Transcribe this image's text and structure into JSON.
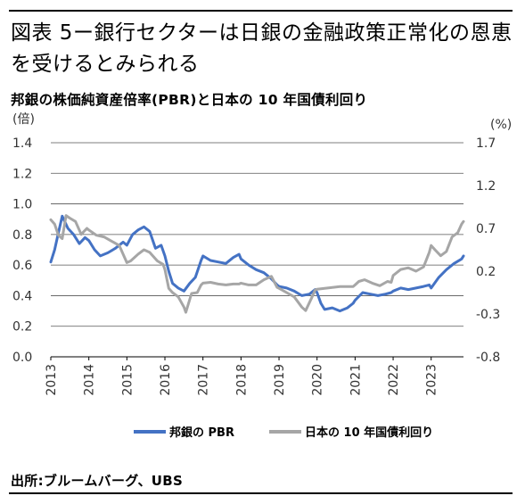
{
  "header": {
    "title": "図表 5ー銀行セクターは日銀の金融政策正常化の恩恵を受けるとみられる",
    "subtitle": "邦銀の株価純資産倍率(PBR)と日本の 10 年国債利回り"
  },
  "footer": {
    "source": "出所:ブルームバーグ、UBS"
  },
  "colors": {
    "pbr": "#4472C4",
    "jgb": "#A6A6A6",
    "negative_label": "#E04040",
    "grid": "#000000"
  },
  "chart_data": {
    "type": "line",
    "title": "邦銀の株価純資産倍率(PBR)と日本の 10 年国債利回り",
    "left_axis": {
      "unit_label": "(倍)",
      "range": [
        0.0,
        1.4
      ],
      "ticks": [
        "0.0",
        "0.2",
        "0.4",
        "0.6",
        "0.8",
        "1.0",
        "1.2",
        "1.4"
      ]
    },
    "right_axis": {
      "unit_label": "(%)",
      "range": [
        -0.8,
        1.7
      ],
      "ticks": [
        "-0.8",
        "-0.3",
        "0.2",
        "0.7",
        "1.2",
        "1.7"
      ],
      "negative_ticks_red": true
    },
    "x_axis": {
      "range": [
        2013.0,
        2023.85
      ],
      "ticks": [
        "2013",
        "2014",
        "2015",
        "2016",
        "2017",
        "2018",
        "2019",
        "2020",
        "2021",
        "2022",
        "2023"
      ]
    },
    "grid": "horizontal",
    "legend_position": "bottom",
    "series": [
      {
        "name": "邦銀の PBR",
        "axis": "left",
        "points": [
          [
            2013.0,
            0.62
          ],
          [
            2013.1,
            0.7
          ],
          [
            2013.2,
            0.81
          ],
          [
            2013.3,
            0.92
          ],
          [
            2013.45,
            0.84
          ],
          [
            2013.6,
            0.8
          ],
          [
            2013.75,
            0.74
          ],
          [
            2013.9,
            0.78
          ],
          [
            2014.0,
            0.76
          ],
          [
            2014.15,
            0.7
          ],
          [
            2014.3,
            0.66
          ],
          [
            2014.5,
            0.68
          ],
          [
            2014.7,
            0.71
          ],
          [
            2014.9,
            0.75
          ],
          [
            2015.0,
            0.73
          ],
          [
            2015.15,
            0.8
          ],
          [
            2015.3,
            0.83
          ],
          [
            2015.45,
            0.85
          ],
          [
            2015.6,
            0.82
          ],
          [
            2015.75,
            0.71
          ],
          [
            2015.9,
            0.73
          ],
          [
            2016.0,
            0.66
          ],
          [
            2016.1,
            0.56
          ],
          [
            2016.2,
            0.48
          ],
          [
            2016.35,
            0.45
          ],
          [
            2016.5,
            0.43
          ],
          [
            2016.65,
            0.48
          ],
          [
            2016.8,
            0.52
          ],
          [
            2016.95,
            0.63
          ],
          [
            2017.0,
            0.66
          ],
          [
            2017.2,
            0.63
          ],
          [
            2017.4,
            0.62
          ],
          [
            2017.6,
            0.61
          ],
          [
            2017.8,
            0.65
          ],
          [
            2017.95,
            0.67
          ],
          [
            2018.0,
            0.64
          ],
          [
            2018.2,
            0.6
          ],
          [
            2018.4,
            0.57
          ],
          [
            2018.6,
            0.55
          ],
          [
            2018.8,
            0.51
          ],
          [
            2018.95,
            0.47
          ],
          [
            2019.0,
            0.46
          ],
          [
            2019.2,
            0.45
          ],
          [
            2019.4,
            0.43
          ],
          [
            2019.6,
            0.4
          ],
          [
            2019.8,
            0.41
          ],
          [
            2019.95,
            0.44
          ],
          [
            2020.0,
            0.42
          ],
          [
            2020.1,
            0.35
          ],
          [
            2020.2,
            0.31
          ],
          [
            2020.4,
            0.32
          ],
          [
            2020.6,
            0.3
          ],
          [
            2020.8,
            0.32
          ],
          [
            2020.95,
            0.35
          ],
          [
            2021.0,
            0.37
          ],
          [
            2021.2,
            0.42
          ],
          [
            2021.4,
            0.41
          ],
          [
            2021.6,
            0.4
          ],
          [
            2021.8,
            0.41
          ],
          [
            2021.95,
            0.42
          ],
          [
            2022.0,
            0.43
          ],
          [
            2022.2,
            0.45
          ],
          [
            2022.4,
            0.44
          ],
          [
            2022.6,
            0.45
          ],
          [
            2022.8,
            0.46
          ],
          [
            2022.95,
            0.47
          ],
          [
            2023.0,
            0.45
          ],
          [
            2023.2,
            0.52
          ],
          [
            2023.4,
            0.57
          ],
          [
            2023.6,
            0.61
          ],
          [
            2023.8,
            0.64
          ],
          [
            2023.85,
            0.66
          ]
        ]
      },
      {
        "name": "日本の 10 年国債利回り",
        "axis": "right",
        "points": [
          [
            2013.0,
            0.8
          ],
          [
            2013.1,
            0.75
          ],
          [
            2013.2,
            0.62
          ],
          [
            2013.3,
            0.58
          ],
          [
            2013.4,
            0.85
          ],
          [
            2013.5,
            0.82
          ],
          [
            2013.65,
            0.78
          ],
          [
            2013.8,
            0.63
          ],
          [
            2013.95,
            0.7
          ],
          [
            2014.0,
            0.68
          ],
          [
            2014.2,
            0.62
          ],
          [
            2014.4,
            0.6
          ],
          [
            2014.6,
            0.55
          ],
          [
            2014.8,
            0.5
          ],
          [
            2014.95,
            0.35
          ],
          [
            2015.0,
            0.3
          ],
          [
            2015.1,
            0.32
          ],
          [
            2015.3,
            0.4
          ],
          [
            2015.45,
            0.45
          ],
          [
            2015.6,
            0.42
          ],
          [
            2015.8,
            0.32
          ],
          [
            2015.95,
            0.28
          ],
          [
            2016.0,
            0.22
          ],
          [
            2016.1,
            0.0
          ],
          [
            2016.2,
            -0.05
          ],
          [
            2016.35,
            -0.1
          ],
          [
            2016.5,
            -0.22
          ],
          [
            2016.55,
            -0.28
          ],
          [
            2016.7,
            -0.06
          ],
          [
            2016.85,
            -0.05
          ],
          [
            2016.95,
            0.04
          ],
          [
            2017.0,
            0.06
          ],
          [
            2017.2,
            0.07
          ],
          [
            2017.4,
            0.05
          ],
          [
            2017.6,
            0.04
          ],
          [
            2017.8,
            0.05
          ],
          [
            2017.95,
            0.05
          ],
          [
            2018.0,
            0.06
          ],
          [
            2018.2,
            0.04
          ],
          [
            2018.4,
            0.04
          ],
          [
            2018.6,
            0.1
          ],
          [
            2018.8,
            0.14
          ],
          [
            2018.95,
            0.01
          ],
          [
            2019.0,
            0.0
          ],
          [
            2019.2,
            -0.05
          ],
          [
            2019.4,
            -0.1
          ],
          [
            2019.6,
            -0.22
          ],
          [
            2019.7,
            -0.26
          ],
          [
            2019.85,
            -0.12
          ],
          [
            2019.95,
            -0.02
          ],
          [
            2020.0,
            -0.01
          ],
          [
            2020.2,
            0.0
          ],
          [
            2020.4,
            0.01
          ],
          [
            2020.6,
            0.02
          ],
          [
            2020.8,
            0.02
          ],
          [
            2020.95,
            0.02
          ],
          [
            2021.0,
            0.04
          ],
          [
            2021.1,
            0.08
          ],
          [
            2021.25,
            0.1
          ],
          [
            2021.45,
            0.06
          ],
          [
            2021.65,
            0.03
          ],
          [
            2021.85,
            0.08
          ],
          [
            2021.95,
            0.07
          ],
          [
            2022.0,
            0.15
          ],
          [
            2022.2,
            0.22
          ],
          [
            2022.4,
            0.24
          ],
          [
            2022.6,
            0.2
          ],
          [
            2022.8,
            0.25
          ],
          [
            2022.95,
            0.42
          ],
          [
            2023.0,
            0.5
          ],
          [
            2023.1,
            0.45
          ],
          [
            2023.25,
            0.38
          ],
          [
            2023.4,
            0.43
          ],
          [
            2023.55,
            0.6
          ],
          [
            2023.7,
            0.65
          ],
          [
            2023.8,
            0.75
          ],
          [
            2023.85,
            0.78
          ]
        ]
      }
    ]
  }
}
